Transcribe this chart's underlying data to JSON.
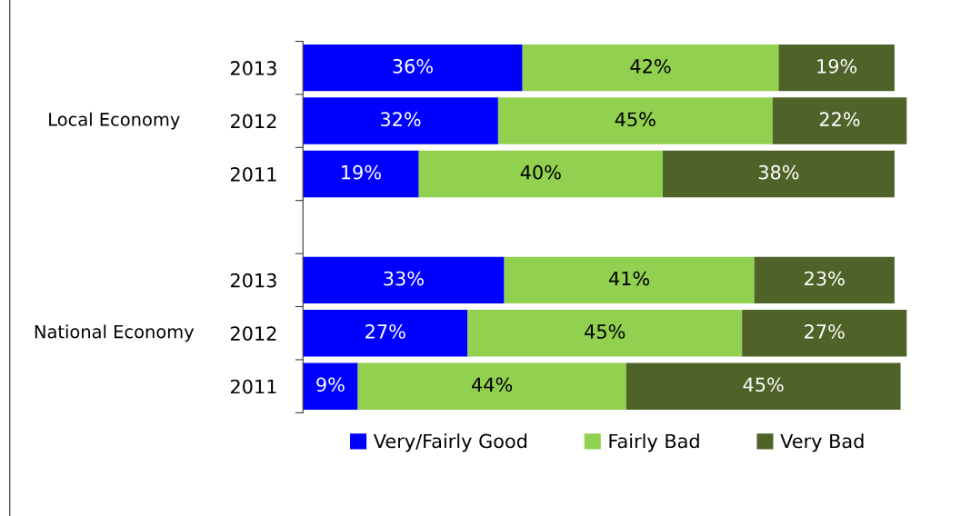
{
  "chart_data": {
    "type": "bar",
    "orientation": "horizontal",
    "stacked": true,
    "legend": "bottom",
    "grid": false,
    "categories": [
      "2013",
      "2012",
      "2011",
      null,
      "2013",
      "2012",
      "2011"
    ],
    "series": [
      {
        "name": "Very/Fairly Good",
        "color": "#0000ff",
        "values": [
          36,
          32,
          19,
          null,
          33,
          27,
          9
        ],
        "value_labels": [
          "36%",
          "32%",
          "19%",
          null,
          "33%",
          "27%",
          "9%"
        ]
      },
      {
        "name": "Fairly Bad",
        "color": "#92d050",
        "values": [
          42,
          45,
          40,
          null,
          41,
          45,
          44
        ],
        "value_labels": [
          "42%",
          "45%",
          "40%",
          null,
          "41%",
          "45%",
          "44%"
        ]
      },
      {
        "name": "Very Bad",
        "color": "#4f6228",
        "values": [
          19,
          22,
          38,
          null,
          23,
          27,
          45
        ],
        "value_labels": [
          "19%",
          "22%",
          "38%",
          null,
          "23%",
          "27%",
          "45%"
        ]
      }
    ],
    "annotations": [
      "Local Economy",
      "National Economy"
    ]
  }
}
